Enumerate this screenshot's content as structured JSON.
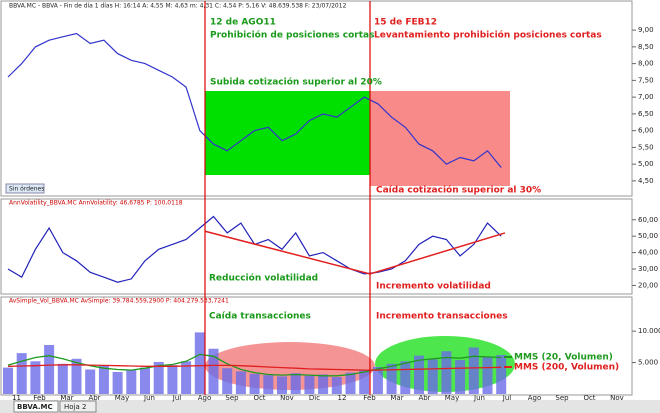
{
  "header": "BBVA.MC - BBVA - Fin de día 1 días H: 16:14 A: 4,55 M: 4,63 m: 4,31 C: 4,54 P: 5,16 V: 48.639.538 F: 23/07/2012",
  "button": "Sin órdenes",
  "tabs": [
    "BBVA.MC",
    "Hoja 2"
  ],
  "time_axis": [
    "11",
    "Feb",
    "Mar",
    "Abr",
    "May",
    "Jun",
    "Jul",
    "Ago",
    "Sep",
    "Oct",
    "Nov",
    "Dic",
    "12",
    "Feb",
    "Mar",
    "Abr",
    "May",
    "Jun",
    "Jul",
    "Ago",
    "Sep",
    "Oct",
    "Nov",
    "Dic"
  ],
  "chart_data": [
    {
      "type": "line",
      "color": "#3333cc",
      "values": [
        7.6,
        8.0,
        8.5,
        8.7,
        8.8,
        8.9,
        8.6,
        8.7,
        8.3,
        8.1,
        8.0,
        7.8,
        7.6,
        7.3,
        6.0,
        5.6,
        5.4,
        5.7,
        6.0,
        6.1,
        5.7,
        5.9,
        6.3,
        6.5,
        6.4,
        6.7,
        7.0,
        6.8,
        6.4,
        6.1,
        5.6,
        5.4,
        5.0,
        5.2,
        5.1,
        5.4,
        4.9
      ],
      "ylim": [
        4.05,
        9.6
      ],
      "yticks": [
        {
          "value": 4.5,
          "label": "4,50"
        },
        {
          "value": 5,
          "label": "5,00"
        },
        {
          "value": 5.5,
          "label": "5,50"
        },
        {
          "value": 6,
          "label": "6,00"
        },
        {
          "value": 6.5,
          "label": "6,50"
        },
        {
          "value": 7,
          "label": "7,00"
        },
        {
          "value": 7.5,
          "label": "7,50"
        },
        {
          "value": 8,
          "label": "8,00"
        },
        {
          "value": 8.5,
          "label": "8,50"
        },
        {
          "value": 9,
          "label": "9,00"
        }
      ],
      "annotations": [
        "12 de AGO11",
        "Prohibición de posiciones cortas",
        "15 de FEB12",
        "Levantamiento prohibición posiciones cortas",
        "Subida cotización superior al 20%",
        "Caída cotización superior al 30%"
      ]
    },
    {
      "type": "line",
      "color": "#2222bb",
      "title": "AnnVolatility_BBVA.MC AnnVolatility: 46,6785 P: 100,0118",
      "values": [
        30,
        25,
        42,
        55,
        40,
        35,
        28,
        25,
        22,
        24,
        35,
        42,
        45,
        48,
        55,
        62,
        52,
        58,
        45,
        48,
        42,
        52,
        38,
        40,
        35,
        30,
        27,
        28,
        30,
        35,
        45,
        50,
        48,
        38,
        45,
        58,
        50
      ],
      "trend": {
        "color": "#e02020",
        "values": [
          53,
          27,
          52
        ]
      },
      "ylim": [
        16,
        69
      ],
      "yticks": [
        {
          "value": 20,
          "label": "20,00"
        },
        {
          "value": 30,
          "label": "30,00"
        },
        {
          "value": 40,
          "label": "40,00"
        },
        {
          "value": 50,
          "label": "50,00"
        },
        {
          "value": 60,
          "label": "60,00"
        }
      ],
      "annotations": [
        "Reducción volatilidad",
        "Incremento volatilidad"
      ]
    },
    {
      "type": "bar",
      "color": "#6a6ae8",
      "title": "AvSimple_Vol_BBVA.MC AvSimple: 39.784.559,2900 P: 404.279.533,7241",
      "values": [
        4200,
        6500,
        5200,
        7800,
        4800,
        5600,
        3900,
        4500,
        3500,
        3800,
        4200,
        5100,
        4600,
        5200,
        9800,
        7200,
        4100,
        3600,
        3200,
        3000,
        2800,
        3300,
        2900,
        3100,
        2700,
        3400,
        3900,
        4300,
        4800,
        5200,
        6100,
        5500,
        6800,
        5400,
        7400,
        5900,
        6200
      ],
      "series": [
        {
          "name": "MMS (20, Volumen)",
          "color": "#1f9a1f",
          "values": [
            4600,
            5200,
            5800,
            6100,
            5600,
            5000,
            4500,
            4100,
            3900,
            3800,
            4100,
            4500,
            4700,
            5200,
            6300,
            6000,
            4800,
            3900,
            3400,
            3100,
            3000,
            3100,
            3000,
            2900,
            2900,
            3100,
            3500,
            4000,
            4400,
            4900,
            5400,
            5600,
            5800,
            5700,
            6000,
            5900,
            5800
          ]
        },
        {
          "name": "MMS (200, Volumen)",
          "color": "#e02020",
          "values": [
            4400,
            4450,
            4500,
            4600,
            4650,
            4650,
            4600,
            4550,
            4500,
            4450,
            4400,
            4400,
            4400,
            4450,
            4500,
            4550,
            4550,
            4500,
            4400,
            4300,
            4200,
            4100,
            4000,
            3950,
            3900,
            3850,
            3800,
            3800,
            3850,
            3900,
            3950,
            4000,
            4050,
            4100,
            4150,
            4200,
            4250
          ]
        }
      ],
      "ylim": [
        0,
        14000
      ],
      "yticks": [
        {
          "value": 5000,
          "label": "5.000"
        },
        {
          "value": 10000,
          "label": "10.000"
        }
      ],
      "annotations": [
        "Caída transacciones",
        "Incremento transacciones"
      ]
    }
  ]
}
